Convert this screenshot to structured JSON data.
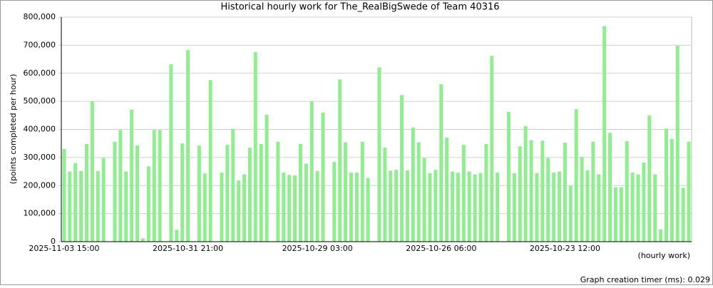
{
  "chart_data": {
    "type": "bar",
    "title": "Historical hourly work for The_RealBigSwede of Team 40316",
    "y_label": "(points completed per hour)",
    "x_label": "(hourly work)",
    "footer": "Graph creation timer (ms): 0.029",
    "color": "#90ee90",
    "grid": true,
    "ylim": [
      0,
      800000
    ],
    "yticks": [
      0,
      {
        "value": 100000,
        "label": "100,000"
      },
      {
        "value": 200000,
        "label": "200,000"
      },
      {
        "value": 300000,
        "label": "300,000"
      },
      {
        "value": 400000,
        "label": "400,000"
      },
      {
        "value": 500000,
        "label": "500,000"
      },
      {
        "value": 600000,
        "label": "600,000"
      },
      {
        "value": 700000,
        "label": "700,000"
      },
      {
        "value": 800000,
        "label": "800,000"
      }
    ],
    "categories": [
      "2025-11-03 15:00",
      null,
      null,
      null,
      null,
      null,
      null,
      null,
      null,
      null,
      null,
      null,
      null,
      null,
      null,
      null,
      null,
      null,
      null,
      null,
      null,
      null,
      "2025-10-31 21:00",
      null,
      null,
      null,
      null,
      null,
      null,
      null,
      null,
      null,
      null,
      null,
      null,
      null,
      null,
      null,
      null,
      null,
      null,
      null,
      null,
      null,
      null,
      "2025-10-29 03:00",
      null,
      null,
      null,
      null,
      null,
      null,
      null,
      null,
      null,
      null,
      null,
      null,
      null,
      null,
      null,
      null,
      null,
      null,
      null,
      null,
      null,
      "2025-10-26 06:00",
      null,
      null,
      null,
      null,
      null,
      null,
      null,
      null,
      null,
      null,
      null,
      null,
      null,
      null,
      null,
      null,
      null,
      null,
      null,
      null,
      null,
      "2025-10-23 12:00",
      null,
      null,
      null,
      null,
      null,
      null,
      null,
      null,
      null,
      null,
      null,
      null,
      null,
      null,
      null,
      null,
      null,
      null,
      null,
      null,
      null,
      null
    ],
    "values": [
      330000,
      250000,
      280000,
      252000,
      348000,
      500000,
      252000,
      298000,
      null,
      356000,
      398000,
      250000,
      470000,
      343000,
      12000,
      268000,
      398000,
      398000,
      null,
      632000,
      42000,
      350000,
      683000,
      null,
      342000,
      243000,
      576000,
      null,
      246000,
      345000,
      402000,
      218000,
      240000,
      335000,
      675000,
      348000,
      452000,
      null,
      356000,
      246000,
      238000,
      236000,
      348000,
      278000,
      500000,
      252000,
      460000,
      null,
      284000,
      578000,
      354000,
      246000,
      246000,
      356000,
      226000,
      null,
      621000,
      335000,
      253000,
      256000,
      522000,
      254000,
      407000,
      354000,
      298000,
      244000,
      256000,
      561000,
      371000,
      250000,
      246000,
      345000,
      250000,
      240000,
      244000,
      348000,
      662000,
      246000,
      null,
      462000,
      244000,
      340000,
      412000,
      362000,
      244000,
      360000,
      298000,
      246000,
      250000,
      353000,
      198000,
      472000,
      302000,
      254000,
      356000,
      240000,
      768000,
      388000,
      194000,
      194000,
      358000,
      246000,
      240000,
      282000,
      450000,
      240000,
      44000,
      403000,
      366000,
      698000,
      192000,
      356000
    ]
  }
}
